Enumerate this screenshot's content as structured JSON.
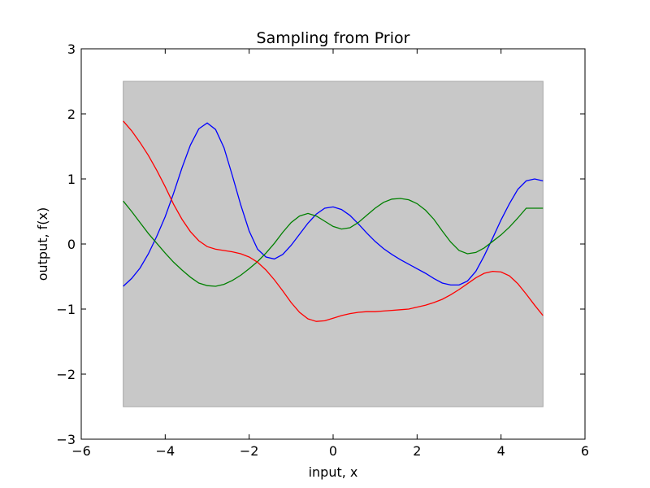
{
  "chart_data": {
    "type": "line",
    "title": "Sampling from Prior",
    "xlabel": "input, x",
    "ylabel": "output, f(x)",
    "xlim": [
      -6,
      6
    ],
    "ylim": [
      -3,
      3
    ],
    "xticks": [
      -6,
      -4,
      -2,
      0,
      2,
      4,
      6
    ],
    "yticks": [
      -3,
      -2,
      -1,
      0,
      1,
      2,
      3
    ],
    "xtick_labels": [
      "−6",
      "−4",
      "−2",
      "0",
      "2",
      "4",
      "6"
    ],
    "ytick_labels": [
      "−3",
      "−2",
      "−1",
      "0",
      "1",
      "2",
      "3"
    ],
    "grid": false,
    "band": {
      "x": [
        -5,
        5
      ],
      "y": [
        -2.5,
        2.5
      ],
      "color": "#c8c8c8"
    },
    "series": [
      {
        "color": "#0000ff",
        "x": [
          -5.0,
          -4.8,
          -4.6,
          -4.4,
          -4.2,
          -4.0,
          -3.8,
          -3.6,
          -3.4,
          -3.2,
          -3.0,
          -2.8,
          -2.6,
          -2.4,
          -2.2,
          -2.0,
          -1.8,
          -1.6,
          -1.4,
          -1.2,
          -1.0,
          -0.8,
          -0.6,
          -0.4,
          -0.2,
          0.0,
          0.2,
          0.4,
          0.6,
          0.8,
          1.0,
          1.2,
          1.4,
          1.6,
          1.8,
          2.0,
          2.2,
          2.4,
          2.6,
          2.8,
          3.0,
          3.2,
          3.4,
          3.6,
          3.8,
          4.0,
          4.2,
          4.4,
          4.6,
          4.8,
          5.0
        ],
        "y": [
          -0.65,
          -0.53,
          -0.37,
          -0.15,
          0.12,
          0.42,
          0.78,
          1.17,
          1.52,
          1.77,
          1.86,
          1.76,
          1.48,
          1.05,
          0.6,
          0.2,
          -0.08,
          -0.2,
          -0.23,
          -0.16,
          -0.02,
          0.15,
          0.32,
          0.46,
          0.55,
          0.57,
          0.53,
          0.44,
          0.31,
          0.17,
          0.04,
          -0.07,
          -0.16,
          -0.24,
          -0.31,
          -0.38,
          -0.45,
          -0.53,
          -0.6,
          -0.63,
          -0.63,
          -0.57,
          -0.42,
          -0.18,
          0.09,
          0.37,
          0.62,
          0.84,
          0.97,
          1.0,
          0.97
        ]
      },
      {
        "color": "#008000",
        "x": [
          -5.0,
          -4.8,
          -4.6,
          -4.4,
          -4.2,
          -4.0,
          -3.8,
          -3.6,
          -3.4,
          -3.2,
          -3.0,
          -2.8,
          -2.6,
          -2.4,
          -2.2,
          -2.0,
          -1.8,
          -1.6,
          -1.4,
          -1.2,
          -1.0,
          -0.8,
          -0.6,
          -0.4,
          -0.2,
          0.0,
          0.2,
          0.4,
          0.6,
          0.8,
          1.0,
          1.2,
          1.4,
          1.6,
          1.8,
          2.0,
          2.2,
          2.4,
          2.6,
          2.8,
          3.0,
          3.2,
          3.4,
          3.6,
          3.8,
          4.0,
          4.2,
          4.4,
          4.6,
          4.8,
          5.0
        ],
        "y": [
          0.66,
          0.5,
          0.33,
          0.16,
          0.01,
          -0.14,
          -0.28,
          -0.4,
          -0.51,
          -0.6,
          -0.64,
          -0.65,
          -0.62,
          -0.56,
          -0.48,
          -0.38,
          -0.27,
          -0.14,
          0.01,
          0.18,
          0.33,
          0.43,
          0.47,
          0.43,
          0.35,
          0.27,
          0.23,
          0.25,
          0.33,
          0.44,
          0.55,
          0.64,
          0.69,
          0.7,
          0.68,
          0.62,
          0.52,
          0.38,
          0.2,
          0.03,
          -0.1,
          -0.15,
          -0.13,
          -0.06,
          0.04,
          0.14,
          0.26,
          0.4,
          0.55,
          0.55,
          0.55
        ]
      },
      {
        "color": "#ff0000",
        "x": [
          -5.0,
          -4.8,
          -4.6,
          -4.4,
          -4.2,
          -4.0,
          -3.8,
          -3.6,
          -3.4,
          -3.2,
          -3.0,
          -2.8,
          -2.6,
          -2.4,
          -2.2,
          -2.0,
          -1.8,
          -1.6,
          -1.4,
          -1.2,
          -1.0,
          -0.8,
          -0.6,
          -0.4,
          -0.2,
          0.0,
          0.2,
          0.4,
          0.6,
          0.8,
          1.0,
          1.2,
          1.4,
          1.6,
          1.8,
          2.0,
          2.2,
          2.4,
          2.6,
          2.8,
          3.0,
          3.2,
          3.4,
          3.6,
          3.8,
          4.0,
          4.2,
          4.4,
          4.6,
          4.8,
          5.0
        ],
        "y": [
          1.89,
          1.74,
          1.56,
          1.36,
          1.13,
          0.88,
          0.61,
          0.38,
          0.19,
          0.05,
          -0.04,
          -0.08,
          -0.1,
          -0.12,
          -0.15,
          -0.2,
          -0.28,
          -0.4,
          -0.55,
          -0.72,
          -0.9,
          -1.05,
          -1.15,
          -1.19,
          -1.18,
          -1.14,
          -1.1,
          -1.07,
          -1.05,
          -1.04,
          -1.04,
          -1.03,
          -1.02,
          -1.01,
          -1.0,
          -0.97,
          -0.94,
          -0.9,
          -0.85,
          -0.78,
          -0.7,
          -0.61,
          -0.52,
          -0.45,
          -0.42,
          -0.43,
          -0.49,
          -0.61,
          -0.77,
          -0.94,
          -1.1
        ]
      }
    ]
  }
}
